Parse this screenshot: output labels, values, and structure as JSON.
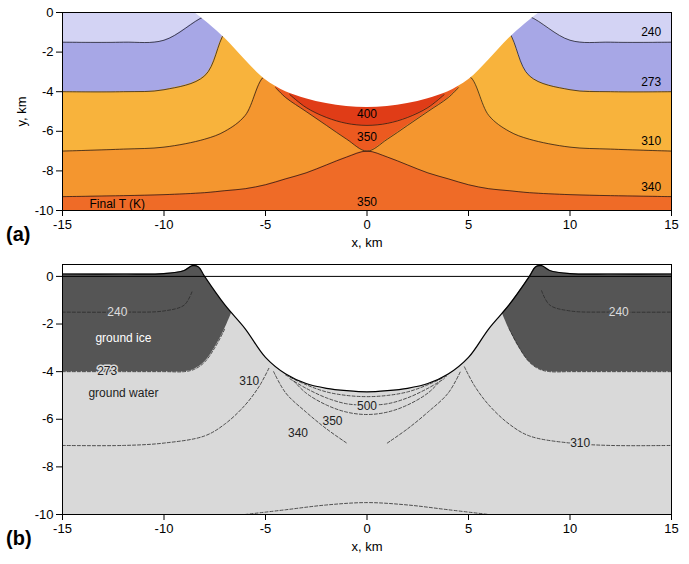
{
  "chart_data": [
    {
      "type": "filled_contour",
      "panel": "(a)",
      "xlim": [
        -15,
        15
      ],
      "ylim": [
        -10,
        0
      ],
      "xticks": [
        -15,
        -10,
        -5,
        0,
        5,
        10,
        15
      ],
      "yticks": [
        0,
        -2,
        -4,
        -6,
        -8,
        -10
      ],
      "x_label": "x, km",
      "y_label": "y, km",
      "x": [
        -15,
        -12,
        -10,
        -8,
        -7,
        -6,
        -5,
        -4,
        -3,
        -2,
        -1,
        0,
        1,
        2,
        3,
        4,
        5,
        6,
        7,
        8,
        10,
        12,
        15
      ],
      "isotherms": [
        {
          "color": "#d3d3f4",
          "y": [
            -1.5,
            -1.5,
            -1.4,
            -0.2,
            0,
            0,
            0,
            0,
            0,
            0,
            0,
            0,
            0,
            0,
            0,
            0,
            0,
            0,
            0,
            -0.2,
            -1.4,
            -1.5,
            -1.5
          ]
        },
        {
          "color": "#a7a7e6",
          "y": [
            -4.0,
            -4.0,
            -3.9,
            -3.2,
            -1.0,
            0,
            0,
            0,
            0,
            0,
            0,
            0,
            0,
            0,
            0,
            0,
            0,
            0,
            -1.0,
            -3.2,
            -3.9,
            -4.0,
            -4.0
          ]
        },
        {
          "color": "#f8b33c",
          "y": [
            -7.0,
            -6.9,
            -6.8,
            -6.4,
            -6.0,
            -5.2,
            -3.2,
            -3.7,
            -4.0,
            -4.3,
            -4.45,
            -4.5,
            -4.45,
            -4.3,
            -4.0,
            -3.7,
            -3.2,
            -5.2,
            -6.0,
            -6.4,
            -6.8,
            -6.9,
            -7.0
          ]
        },
        {
          "color": "#f4962f",
          "y": [
            -9.3,
            -9.25,
            -9.2,
            -9.1,
            -9.0,
            -8.9,
            -8.7,
            -8.4,
            -8.1,
            -7.7,
            -7.3,
            -7.0,
            -7.3,
            -7.7,
            -8.1,
            -8.4,
            -8.7,
            -8.9,
            -9.0,
            -9.1,
            -9.2,
            -9.25,
            -9.3
          ]
        }
      ],
      "below_color": "#ef6b27",
      "regions": [
        {
          "color": "#ec5a20",
          "x": [
            -4.5,
            -4,
            -3,
            -2,
            -1,
            0,
            1,
            2,
            3,
            4,
            4.5
          ],
          "y": [
            -3.8,
            -4.3,
            -5.0,
            -5.7,
            -6.4,
            -7.0,
            -6.4,
            -5.7,
            -5.0,
            -4.3,
            -3.8
          ]
        },
        {
          "color": "#e03c17",
          "x": [
            -3.8,
            -3,
            -2,
            -1,
            0,
            1,
            2,
            3,
            3.8
          ],
          "y": [
            -4.15,
            -4.8,
            -5.3,
            -5.6,
            -5.7,
            -5.6,
            -5.3,
            -4.8,
            -4.15
          ]
        }
      ],
      "crater": {
        "x": [
          -8.5,
          -8,
          -7,
          -6,
          -5,
          -4,
          -3,
          -2,
          -1,
          0,
          1,
          2,
          3,
          4,
          5,
          6,
          7,
          8,
          8.5
        ],
        "y": [
          0,
          -0.4,
          -1.3,
          -2.4,
          -3.4,
          -4.0,
          -4.35,
          -4.6,
          -4.75,
          -4.8,
          -4.75,
          -4.6,
          -4.35,
          -4.0,
          -3.4,
          -2.4,
          -1.3,
          -0.4,
          0
        ]
      },
      "labels": [
        {
          "text": "240",
          "x": 14,
          "y": -1.0
        },
        {
          "text": "273",
          "x": 14,
          "y": -3.5
        },
        {
          "text": "310",
          "x": 14,
          "y": -6.5
        },
        {
          "text": "340",
          "x": 14,
          "y": -8.8
        },
        {
          "text": "400",
          "x": 0,
          "y": -5.15
        },
        {
          "text": "350",
          "x": 0,
          "y": -6.3
        },
        {
          "text": "350",
          "x": 0,
          "y": -9.6
        },
        {
          "text": "Final T (K)",
          "x": -12.3,
          "y": -9.68
        }
      ]
    },
    {
      "type": "contour_lines",
      "panel": "(b)",
      "xlim": [
        -15,
        15
      ],
      "ylim": [
        -10,
        0.5
      ],
      "xticks": [
        -15,
        -10,
        -5,
        0,
        5,
        10,
        15
      ],
      "yticks": [
        0,
        -2,
        -4,
        -6,
        -8,
        -10
      ],
      "x_label": "x, km",
      "y_label": null,
      "water_color": "#d9d9d9",
      "ice_regions": [
        {
          "color": "#555555",
          "x": [
            -15,
            -12,
            -10,
            -9,
            -8.5,
            -8,
            -7.5,
            -7,
            -6.6
          ],
          "y_top": [
            0.5,
            0.5,
            0.5,
            0.5,
            0.5,
            0.5,
            0.5,
            0.5,
            0.5
          ],
          "y_bottom": [
            -4,
            -4,
            -4,
            -4,
            -3.9,
            -3.6,
            -3.0,
            -2.2,
            -1.4
          ]
        },
        {
          "color": "#555555",
          "x": [
            6.6,
            7,
            7.5,
            8,
            8.5,
            9,
            10,
            12,
            15
          ],
          "y_top": [
            0.5,
            0.5,
            0.5,
            0.5,
            0.5,
            0.5,
            0.5,
            0.5,
            0.5
          ],
          "y_bottom": [
            -1.4,
            -2.2,
            -3.0,
            -3.6,
            -3.9,
            -4,
            -4,
            -4,
            -4
          ]
        }
      ],
      "surface": {
        "x": [
          -15,
          -12,
          -10,
          -9,
          -8.6,
          -8.3,
          -8,
          -7,
          -6,
          -5,
          -4,
          -3,
          -2,
          -1,
          0,
          1,
          2,
          3,
          4,
          5,
          6,
          7,
          8,
          8.3,
          8.6,
          9,
          10,
          12,
          15
        ],
        "y": [
          0.1,
          0.1,
          0.12,
          0.25,
          0.45,
          0.4,
          0,
          -1.2,
          -2.2,
          -3.4,
          -4.1,
          -4.5,
          -4.7,
          -4.8,
          -4.85,
          -4.8,
          -4.7,
          -4.5,
          -4.1,
          -3.4,
          -2.2,
          -1.2,
          0,
          0.4,
          0.45,
          0.25,
          0.12,
          0.1,
          0.1
        ]
      },
      "hline": 0,
      "contours": [
        {
          "x": [
            -15,
            -12,
            -10,
            -9,
            -8.6
          ],
          "y": [
            -1.5,
            -1.5,
            -1.45,
            -1.2,
            -0.6
          ]
        },
        {
          "x": [
            8.6,
            9,
            10,
            12,
            15
          ],
          "y": [
            -0.6,
            -1.2,
            -1.45,
            -1.5,
            -1.5
          ]
        },
        {
          "x": [
            -15,
            -12,
            -10,
            -9,
            -8.5,
            -8,
            -7.5,
            -7
          ],
          "y": [
            -4,
            -4,
            -4,
            -4,
            -3.9,
            -3.6,
            -3.0,
            -2.2
          ]
        },
        {
          "x": [
            7,
            7.5,
            8,
            8.5,
            9,
            10,
            12,
            15
          ],
          "y": [
            -2.2,
            -3.0,
            -3.6,
            -3.9,
            -4,
            -4,
            -4,
            -4
          ]
        },
        {
          "x": [
            -15,
            -12,
            -10,
            -8,
            -7,
            -6,
            -5.3,
            -4.8
          ],
          "y": [
            -7.1,
            -7.1,
            -7.0,
            -6.7,
            -6.2,
            -5.4,
            -4.6,
            -3.8
          ]
        },
        {
          "x": [
            4.8,
            5.3,
            6,
            7,
            8,
            10,
            12,
            15
          ],
          "y": [
            -3.8,
            -4.6,
            -5.4,
            -6.2,
            -6.7,
            -7.0,
            -7.1,
            -7.1
          ]
        },
        {
          "x": [
            -4.6,
            -4,
            -3,
            -2,
            -1
          ],
          "y": [
            -4.0,
            -4.9,
            -5.7,
            -6.4,
            -7.0
          ]
        },
        {
          "x": [
            1,
            2,
            3,
            4,
            4.6
          ],
          "y": [
            -7.0,
            -6.4,
            -5.7,
            -4.9,
            -4.0
          ]
        },
        {
          "x": [
            -6,
            -4,
            -2,
            0,
            2,
            4,
            6
          ],
          "y": [
            -10,
            -9.8,
            -9.6,
            -9.5,
            -9.6,
            -9.8,
            -10
          ]
        },
        {
          "x": [
            -3.6,
            -3,
            -2,
            -1,
            0,
            1,
            2,
            3,
            3.6
          ],
          "y": [
            -4.4,
            -4.9,
            -5.4,
            -5.7,
            -5.8,
            -5.7,
            -5.4,
            -4.9,
            -4.4
          ]
        },
        {
          "x": [
            -3.8,
            -3,
            -2,
            -1,
            0,
            1,
            2,
            3,
            3.8
          ],
          "y": [
            -4.3,
            -4.7,
            -5.1,
            -5.35,
            -5.4,
            -5.35,
            -5.1,
            -4.7,
            -4.3
          ]
        },
        {
          "x": [
            -4,
            -3,
            -2,
            -1,
            0,
            1,
            2,
            3,
            4
          ],
          "y": [
            -4.15,
            -4.55,
            -4.85,
            -5.0,
            -5.05,
            -5.0,
            -4.85,
            -4.55,
            -4.15
          ]
        }
      ],
      "labels": [
        {
          "text": "ground ice",
          "x": -12,
          "y": -2.6,
          "color": "#ffffff"
        },
        {
          "text": "ground water",
          "x": -12,
          "y": -4.9,
          "color": "#222222"
        },
        {
          "text": "240",
          "x": -12.3,
          "y": -1.5,
          "color": "#dddddd"
        },
        {
          "text": "240",
          "x": 12.4,
          "y": -1.5,
          "color": "#dddddd"
        },
        {
          "text": "273",
          "x": -12.8,
          "y": -4.0,
          "color": "#222222"
        },
        {
          "text": "310",
          "x": -5.8,
          "y": -4.4,
          "color": "#222222"
        },
        {
          "text": "310",
          "x": 10.5,
          "y": -7.0,
          "color": "#222222"
        },
        {
          "text": "340",
          "x": -3.4,
          "y": -6.6,
          "color": "#222222"
        },
        {
          "text": "350",
          "x": -1.7,
          "y": -6.1,
          "color": "#222222"
        },
        {
          "text": "500",
          "x": 0,
          "y": -5.45,
          "color": "#222222"
        }
      ]
    }
  ]
}
